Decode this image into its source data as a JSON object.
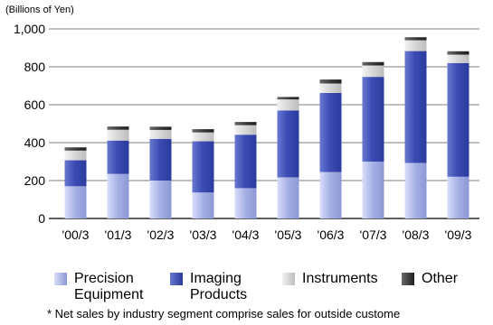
{
  "chart_data": {
    "type": "bar",
    "stacked": true,
    "unit_label": "(Billions of Yen)",
    "categories": [
      "'00/3",
      "'01/3",
      "'02/3",
      "'03/3",
      "'04/3",
      "'05/3",
      "'06/3",
      "'07/3",
      "'08/3",
      "'09/3"
    ],
    "series": [
      {
        "name": "Precision Equipment",
        "name_lines": [
          "Precision",
          "Equipment"
        ],
        "color": "#9aa6de",
        "values": [
          170,
          235,
          200,
          137,
          160,
          217,
          245,
          300,
          293,
          220
        ]
      },
      {
        "name": "Imaging Products",
        "name_lines": [
          "Imaging",
          "Products"
        ],
        "color": "#4050b2",
        "values": [
          137,
          176,
          220,
          270,
          282,
          353,
          417,
          447,
          590,
          600
        ]
      },
      {
        "name": "Instruments",
        "name_lines": [
          "Instruments"
        ],
        "color": "#d9d9d9",
        "values": [
          51,
          57,
          47,
          47,
          50,
          58,
          50,
          60,
          57,
          44
        ]
      },
      {
        "name": "Other",
        "name_lines": [
          "Other"
        ],
        "color": "#3a3a3a",
        "values": [
          17,
          17,
          17,
          17,
          17,
          13,
          21,
          18,
          16,
          18
        ]
      }
    ],
    "yticks": [
      "0",
      "200",
      "400",
      "600",
      "800",
      "1,000"
    ],
    "ylim": [
      0,
      1000
    ],
    "grid": true,
    "legend_position": "bottom"
  },
  "footnote": "* Net sales by industry segment comprise sales for outside custome"
}
